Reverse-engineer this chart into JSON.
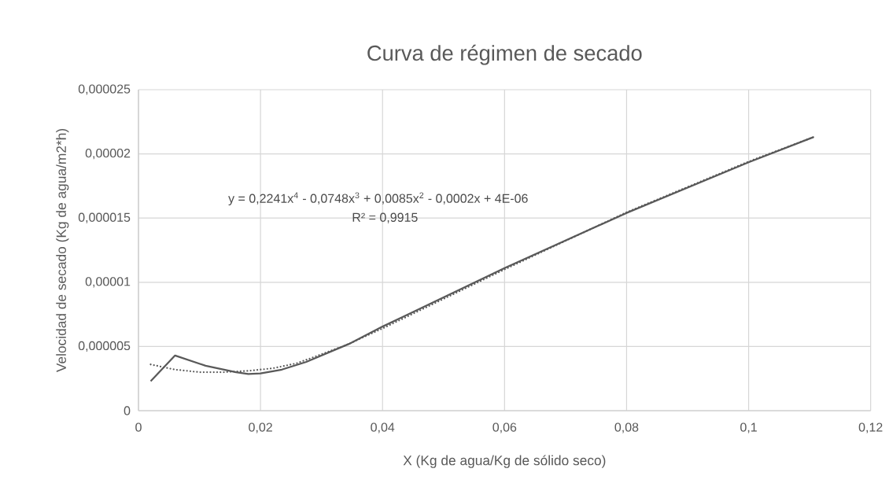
{
  "chart_data": {
    "type": "line",
    "title": "Curva de régimen de secado",
    "xlabel": "X (Kg de agua/Kg de sólido seco)",
    "ylabel": "Velocidad de secado (Kg de agua/m2*h)",
    "xlim": [
      0,
      0.12
    ],
    "xticks": [
      0,
      {
        "value": 0.02,
        "label": "0,02"
      },
      {
        "value": 0.04,
        "label": "0,04"
      },
      {
        "value": 0.06,
        "label": "0,06"
      },
      {
        "value": 0.08,
        "label": "0,08"
      },
      {
        "value": 0.1,
        "label": "0,1"
      },
      {
        "value": 0.12,
        "label": "0,12"
      }
    ],
    "ylim": [
      0,
      2.5e-05
    ],
    "yticks": [
      0,
      {
        "value": 5e-06,
        "label": "0,000005"
      },
      {
        "value": 1e-05,
        "label": "0,00001"
      },
      {
        "value": 1.5e-05,
        "label": "0,000015"
      },
      {
        "value": 2e-05,
        "label": "0,00002"
      },
      {
        "value": 2.5e-05,
        "label": "0,000025"
      }
    ],
    "grid": true,
    "marker": "none",
    "series": [
      {
        "color": "#595959",
        "line_style": "solid",
        "x": [
          0.002,
          0.006,
          0.011,
          0.016,
          0.018,
          0.02,
          0.0235,
          0.0275,
          0.0345,
          0.04,
          0.06,
          0.08,
          0.1,
          0.1106
        ],
        "values": [
          2.3e-06,
          4.3e-06,
          3.5e-06,
          3e-06,
          2.85e-06,
          2.9e-06,
          3.2e-06,
          3.8e-06,
          5.2e-06,
          6.55e-06,
          1.11e-05,
          1.54e-05,
          1.935e-05,
          2.13e-05
        ]
      },
      {
        "type": "line",
        "color": "#595959",
        "line_style": "dotted",
        "x": [
          0.002,
          0.006,
          0.01,
          0.014,
          0.018,
          0.022,
          0.026,
          0.03,
          0.034,
          0.04,
          0.06,
          0.08,
          0.1,
          0.1106
        ],
        "values": [
          3.6e-06,
          3.2e-06,
          3e-06,
          3e-06,
          3.1e-06,
          3.3e-06,
          3.7e-06,
          4.4e-06,
          5.1e-06,
          6.4e-06,
          1.1e-05,
          1.545e-05,
          1.94e-05,
          2.13e-05
        ]
      }
    ],
    "annotations": [
      "y = 0,2241x$^{4}$ - 0,0748x$^{3}$ + 0,0085x$^{2}$ - 0,0002x + 4E-06",
      "R² = 0,9915"
    ]
  }
}
